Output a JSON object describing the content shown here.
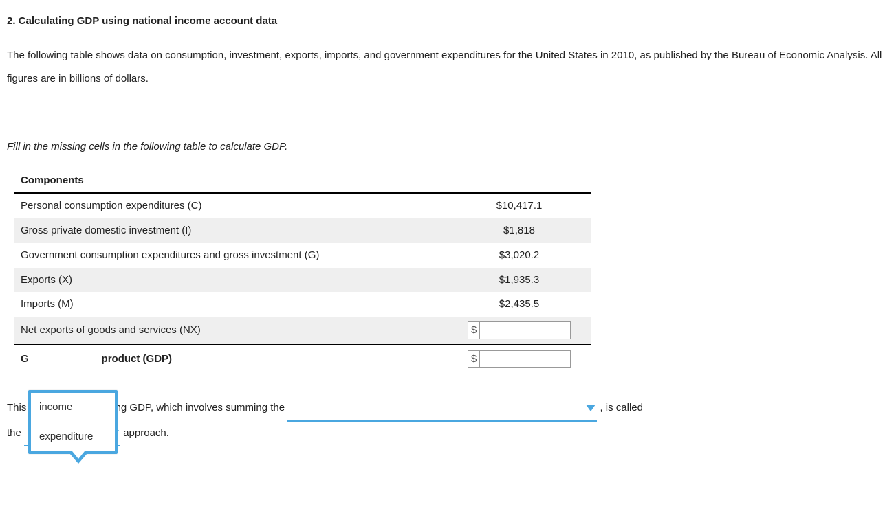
{
  "heading": "2. Calculating GDP using national income account data",
  "intro": "The following table shows data on consumption, investment, exports, imports, and government expenditures for the United States in 2010, as published by the Bureau of Economic Analysis. All figures are in billions of dollars.",
  "instruction": "Fill in the missing cells in the following table to calculate GDP.",
  "table": {
    "header": "Components",
    "rows": [
      {
        "label": "Personal consumption expenditures (C)",
        "value": "$10,417.1",
        "alt": false
      },
      {
        "label": "Gross private domestic investment (I)",
        "value": "$1,818",
        "alt": true
      },
      {
        "label": "Government consumption expenditures and gross investment (G)",
        "value": "$3,020.2",
        "alt": false
      },
      {
        "label": "Exports (X)",
        "value": "$1,935.3",
        "alt": true
      },
      {
        "label": "Imports (M)",
        "value": "$2,435.5",
        "alt": false
      }
    ],
    "nx": {
      "label": "Net exports of goods and services (NX)",
      "currency": "$"
    },
    "gdp": {
      "label_pre": "G",
      "label_post": " product (GDP)",
      "currency": "$"
    }
  },
  "sentence": {
    "s1": "This",
    "s2": "culating GDP, which involves summing the ",
    "s3": " , is called",
    "s4": "the ",
    "s5": " approach."
  },
  "popup": {
    "options": [
      "income",
      "expenditure"
    ]
  },
  "colors": {
    "accent": "#4aa7e0",
    "alt_row": "#efefef",
    "text": "#222222",
    "border": "#999999"
  }
}
